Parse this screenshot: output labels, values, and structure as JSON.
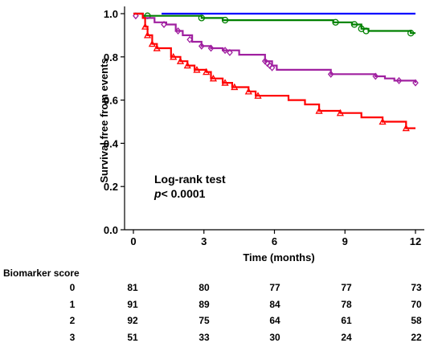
{
  "chart_data": {
    "type": "line",
    "subtype": "kaplan-meier step curves with censor markers",
    "ylabel": "Survival free from events",
    "xlabel": "Time (months)",
    "xlim": [
      0,
      12
    ],
    "ylim": [
      0,
      1
    ],
    "x_ticks": [
      "0",
      "3",
      "6",
      "9",
      "12"
    ],
    "y_ticks": [
      "0.0",
      "0.2",
      "0.4",
      "0.6",
      "0.8",
      "1.0"
    ],
    "grid": false,
    "annotation": {
      "line1": "Log-rank test",
      "line2_italic": "p",
      "line2_rest": "< 0.0001"
    },
    "series": [
      {
        "score": "0",
        "color": "#0000ff",
        "marker": "none",
        "steps": [
          [
            0,
            1.0
          ],
          [
            12,
            1.0
          ]
        ],
        "censors": [],
        "drawn_from": 1.2
      },
      {
        "score": "1",
        "color": "#008000",
        "marker": "circle",
        "steps": [
          [
            0,
            1.0
          ],
          [
            0.4,
            0.99
          ],
          [
            2.9,
            0.98
          ],
          [
            3.8,
            0.97
          ],
          [
            8.5,
            0.96
          ],
          [
            9.3,
            0.95
          ],
          [
            9.7,
            0.93
          ],
          [
            10.0,
            0.92
          ],
          [
            11.8,
            0.91
          ],
          [
            12,
            0.91
          ]
        ],
        "censors": [
          [
            0.6,
            0.99
          ],
          [
            2.9,
            0.98
          ],
          [
            3.9,
            0.97
          ],
          [
            8.6,
            0.96
          ],
          [
            9.4,
            0.95
          ],
          [
            9.7,
            0.93
          ],
          [
            9.9,
            0.92
          ],
          [
            11.8,
            0.91
          ]
        ]
      },
      {
        "score": "2",
        "color": "#a020a0",
        "marker": "diamond",
        "steps": [
          [
            0,
            1.0
          ],
          [
            0.4,
            0.98
          ],
          [
            0.9,
            0.96
          ],
          [
            1.4,
            0.95
          ],
          [
            1.8,
            0.92
          ],
          [
            2.1,
            0.9
          ],
          [
            2.5,
            0.87
          ],
          [
            2.9,
            0.85
          ],
          [
            3.3,
            0.84
          ],
          [
            3.8,
            0.83
          ],
          [
            4.5,
            0.81
          ],
          [
            5.6,
            0.78
          ],
          [
            5.9,
            0.76
          ],
          [
            6.1,
            0.74
          ],
          [
            8.4,
            0.72
          ],
          [
            10.3,
            0.71
          ],
          [
            10.7,
            0.7
          ],
          [
            11.1,
            0.69
          ],
          [
            12,
            0.68
          ]
        ],
        "censors": [
          [
            0.1,
            0.99
          ],
          [
            1.3,
            0.95
          ],
          [
            1.9,
            0.92
          ],
          [
            2.4,
            0.88
          ],
          [
            2.9,
            0.85
          ],
          [
            3.3,
            0.84
          ],
          [
            3.9,
            0.83
          ],
          [
            4.1,
            0.82
          ],
          [
            5.6,
            0.78
          ],
          [
            5.7,
            0.77
          ],
          [
            5.8,
            0.76
          ],
          [
            5.9,
            0.75
          ],
          [
            8.4,
            0.72
          ],
          [
            10.3,
            0.71
          ],
          [
            11.3,
            0.69
          ],
          [
            12,
            0.68
          ]
        ]
      },
      {
        "score": "3",
        "color": "#ff0000",
        "marker": "triangle",
        "steps": [
          [
            0,
            1.0
          ],
          [
            0.4,
            0.98
          ],
          [
            0.5,
            0.94
          ],
          [
            0.6,
            0.9
          ],
          [
            0.8,
            0.86
          ],
          [
            1.0,
            0.84
          ],
          [
            1.6,
            0.8
          ],
          [
            2.0,
            0.78
          ],
          [
            2.3,
            0.76
          ],
          [
            2.6,
            0.74
          ],
          [
            3.1,
            0.73
          ],
          [
            3.3,
            0.7
          ],
          [
            3.8,
            0.68
          ],
          [
            4.2,
            0.66
          ],
          [
            4.9,
            0.64
          ],
          [
            5.2,
            0.62
          ],
          [
            6.6,
            0.6
          ],
          [
            7.3,
            0.58
          ],
          [
            7.9,
            0.55
          ],
          [
            8.8,
            0.54
          ],
          [
            9.7,
            0.52
          ],
          [
            10.6,
            0.5
          ],
          [
            11.6,
            0.47
          ],
          [
            12,
            0.47
          ]
        ],
        "censors": [
          [
            0.5,
            0.94
          ],
          [
            0.6,
            0.9
          ],
          [
            0.8,
            0.86
          ],
          [
            1.0,
            0.84
          ],
          [
            1.7,
            0.8
          ],
          [
            2.0,
            0.78
          ],
          [
            2.3,
            0.76
          ],
          [
            2.7,
            0.74
          ],
          [
            3.1,
            0.73
          ],
          [
            3.4,
            0.7
          ],
          [
            3.9,
            0.68
          ],
          [
            4.3,
            0.66
          ],
          [
            4.9,
            0.64
          ],
          [
            5.3,
            0.62
          ],
          [
            7.9,
            0.55
          ],
          [
            8.8,
            0.54
          ],
          [
            10.6,
            0.5
          ],
          [
            11.6,
            0.47
          ]
        ]
      }
    ]
  },
  "risk_table": {
    "title": "Biomarker score",
    "rows": [
      {
        "label": "0",
        "counts": [
          "81",
          "80",
          "77",
          "77",
          "73"
        ]
      },
      {
        "label": "1",
        "counts": [
          "91",
          "89",
          "84",
          "78",
          "70"
        ]
      },
      {
        "label": "2",
        "counts": [
          "92",
          "75",
          "64",
          "61",
          "58"
        ]
      },
      {
        "label": "3",
        "counts": [
          "51",
          "33",
          "30",
          "24",
          "22"
        ]
      }
    ]
  }
}
